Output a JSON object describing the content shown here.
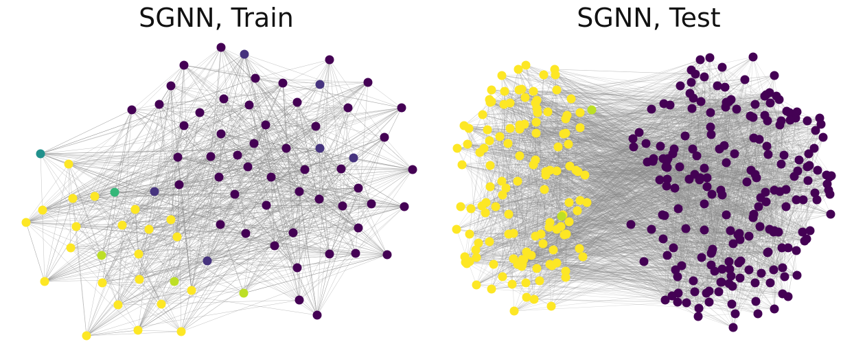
{
  "panels": [
    {
      "title": "SGNN, Train"
    },
    {
      "title": "SGNN, Test"
    }
  ],
  "colors": {
    "class_dark_purple": "#440154",
    "class_indigo": "#46337e",
    "class_teal": "#21918c",
    "class_green": "#35b779",
    "class_lime": "#bddf26",
    "class_yellow": "#fde725",
    "edge": "#888888"
  }
}
